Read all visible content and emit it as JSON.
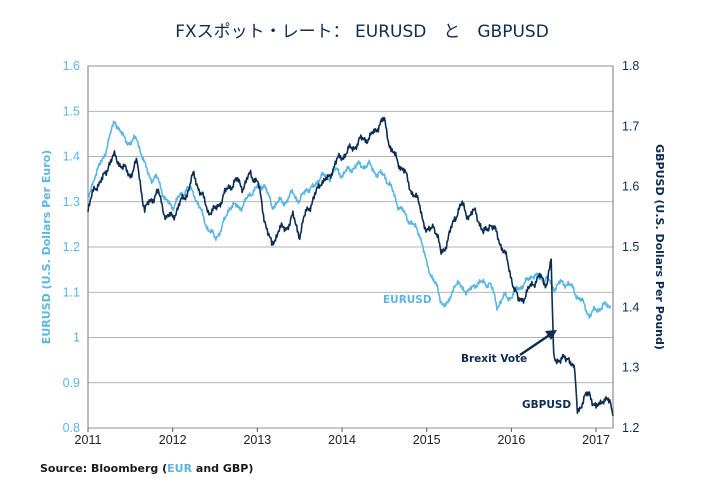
{
  "chart_data": {
    "type": "line",
    "title": "FXスポット・レート：  EURUSD　と　GBPUSD",
    "x_ticks": [
      "2011",
      "2012",
      "2013",
      "2014",
      "2015",
      "2016",
      "2017"
    ],
    "y_left": {
      "label": "EURUSD (U.S. Dollars Per Euro)",
      "ticks": [
        "1.6",
        "1.5",
        "1.4",
        "1.3",
        "1.2",
        "1.1",
        "1",
        "0.9",
        "0.8"
      ],
      "lim": [
        0.8,
        1.6
      ]
    },
    "y_right": {
      "label": "GBPUSD (U.S. Dollars Per Pound)",
      "ticks": [
        "1.8",
        "1.7",
        "1.6",
        "1.5",
        "1.4",
        "1.3",
        "1.2"
      ],
      "lim": [
        1.2,
        1.8
      ]
    },
    "xlim": [
      2011.0,
      2017.2
    ],
    "grid": true,
    "series": [
      {
        "name": "EURUSD",
        "axis": "left",
        "color": "#5bb6e4",
        "points": [
          [
            2011.0,
            1.3
          ],
          [
            2011.08,
            1.36
          ],
          [
            2011.17,
            1.39
          ],
          [
            2011.25,
            1.44
          ],
          [
            2011.32,
            1.48
          ],
          [
            2011.42,
            1.44
          ],
          [
            2011.5,
            1.43
          ],
          [
            2011.58,
            1.44
          ],
          [
            2011.67,
            1.38
          ],
          [
            2011.75,
            1.35
          ],
          [
            2011.83,
            1.35
          ],
          [
            2011.92,
            1.3
          ],
          [
            2012.0,
            1.29
          ],
          [
            2012.08,
            1.31
          ],
          [
            2012.17,
            1.33
          ],
          [
            2012.25,
            1.32
          ],
          [
            2012.33,
            1.28
          ],
          [
            2012.42,
            1.24
          ],
          [
            2012.5,
            1.22
          ],
          [
            2012.58,
            1.24
          ],
          [
            2012.67,
            1.29
          ],
          [
            2012.75,
            1.29
          ],
          [
            2012.83,
            1.29
          ],
          [
            2012.92,
            1.32
          ],
          [
            2013.0,
            1.33
          ],
          [
            2013.08,
            1.34
          ],
          [
            2013.17,
            1.29
          ],
          [
            2013.25,
            1.3
          ],
          [
            2013.33,
            1.3
          ],
          [
            2013.42,
            1.32
          ],
          [
            2013.5,
            1.3
          ],
          [
            2013.58,
            1.33
          ],
          [
            2013.67,
            1.33
          ],
          [
            2013.75,
            1.36
          ],
          [
            2013.83,
            1.35
          ],
          [
            2013.92,
            1.37
          ],
          [
            2014.0,
            1.36
          ],
          [
            2014.08,
            1.37
          ],
          [
            2014.17,
            1.38
          ],
          [
            2014.25,
            1.38
          ],
          [
            2014.33,
            1.38
          ],
          [
            2014.42,
            1.36
          ],
          [
            2014.5,
            1.36
          ],
          [
            2014.58,
            1.33
          ],
          [
            2014.67,
            1.29
          ],
          [
            2014.75,
            1.27
          ],
          [
            2014.83,
            1.25
          ],
          [
            2014.92,
            1.23
          ],
          [
            2015.0,
            1.16
          ],
          [
            2015.08,
            1.13
          ],
          [
            2015.17,
            1.08
          ],
          [
            2015.25,
            1.07
          ],
          [
            2015.33,
            1.12
          ],
          [
            2015.42,
            1.11
          ],
          [
            2015.5,
            1.1
          ],
          [
            2015.58,
            1.12
          ],
          [
            2015.67,
            1.12
          ],
          [
            2015.75,
            1.12
          ],
          [
            2015.83,
            1.07
          ],
          [
            2015.92,
            1.09
          ],
          [
            2016.0,
            1.09
          ],
          [
            2016.08,
            1.11
          ],
          [
            2016.17,
            1.12
          ],
          [
            2016.25,
            1.14
          ],
          [
            2016.33,
            1.13
          ],
          [
            2016.42,
            1.13
          ],
          [
            2016.5,
            1.11
          ],
          [
            2016.58,
            1.12
          ],
          [
            2016.67,
            1.12
          ],
          [
            2016.75,
            1.1
          ],
          [
            2016.83,
            1.08
          ],
          [
            2016.92,
            1.05
          ],
          [
            2017.0,
            1.06
          ],
          [
            2017.08,
            1.07
          ],
          [
            2017.17,
            1.07
          ]
        ]
      },
      {
        "name": "GBPUSD",
        "axis": "right",
        "color": "#0d2d52",
        "points": [
          [
            2011.0,
            1.56
          ],
          [
            2011.08,
            1.6
          ],
          [
            2011.17,
            1.61
          ],
          [
            2011.25,
            1.64
          ],
          [
            2011.32,
            1.65
          ],
          [
            2011.42,
            1.63
          ],
          [
            2011.5,
            1.62
          ],
          [
            2011.58,
            1.64
          ],
          [
            2011.67,
            1.56
          ],
          [
            2011.75,
            1.58
          ],
          [
            2011.83,
            1.59
          ],
          [
            2011.92,
            1.55
          ],
          [
            2012.0,
            1.55
          ],
          [
            2012.08,
            1.57
          ],
          [
            2012.17,
            1.59
          ],
          [
            2012.25,
            1.62
          ],
          [
            2012.33,
            1.59
          ],
          [
            2012.42,
            1.56
          ],
          [
            2012.5,
            1.56
          ],
          [
            2012.58,
            1.58
          ],
          [
            2012.67,
            1.6
          ],
          [
            2012.75,
            1.61
          ],
          [
            2012.83,
            1.6
          ],
          [
            2012.92,
            1.62
          ],
          [
            2013.0,
            1.61
          ],
          [
            2013.08,
            1.55
          ],
          [
            2013.17,
            1.5
          ],
          [
            2013.25,
            1.53
          ],
          [
            2013.33,
            1.53
          ],
          [
            2013.42,
            1.55
          ],
          [
            2013.5,
            1.52
          ],
          [
            2013.58,
            1.56
          ],
          [
            2013.67,
            1.58
          ],
          [
            2013.75,
            1.61
          ],
          [
            2013.83,
            1.61
          ],
          [
            2013.92,
            1.64
          ],
          [
            2014.0,
            1.65
          ],
          [
            2014.08,
            1.66
          ],
          [
            2014.17,
            1.67
          ],
          [
            2014.25,
            1.68
          ],
          [
            2014.33,
            1.68
          ],
          [
            2014.42,
            1.7
          ],
          [
            2014.5,
            1.71
          ],
          [
            2014.58,
            1.66
          ],
          [
            2014.67,
            1.64
          ],
          [
            2014.75,
            1.62
          ],
          [
            2014.83,
            1.59
          ],
          [
            2014.92,
            1.57
          ],
          [
            2015.0,
            1.52
          ],
          [
            2015.08,
            1.54
          ],
          [
            2015.17,
            1.49
          ],
          [
            2015.25,
            1.51
          ],
          [
            2015.33,
            1.55
          ],
          [
            2015.42,
            1.57
          ],
          [
            2015.5,
            1.55
          ],
          [
            2015.58,
            1.56
          ],
          [
            2015.67,
            1.52
          ],
          [
            2015.75,
            1.54
          ],
          [
            2015.83,
            1.52
          ],
          [
            2015.92,
            1.49
          ],
          [
            2016.0,
            1.45
          ],
          [
            2016.08,
            1.41
          ],
          [
            2016.17,
            1.42
          ],
          [
            2016.25,
            1.44
          ],
          [
            2016.33,
            1.45
          ],
          [
            2016.42,
            1.44
          ],
          [
            2016.47,
            1.48
          ],
          [
            2016.49,
            1.36
          ],
          [
            2016.5,
            1.32
          ],
          [
            2016.58,
            1.31
          ],
          [
            2016.67,
            1.32
          ],
          [
            2016.75,
            1.29
          ],
          [
            2016.78,
            1.23
          ],
          [
            2016.83,
            1.24
          ],
          [
            2016.92,
            1.26
          ],
          [
            2017.0,
            1.23
          ],
          [
            2017.08,
            1.25
          ],
          [
            2017.17,
            1.24
          ],
          [
            2017.2,
            1.22
          ]
        ]
      }
    ],
    "annotations": [
      {
        "text": "EURUSD",
        "color": "#5bb6e4"
      },
      {
        "text": "GBPUSD",
        "color": "#0d2d52"
      },
      {
        "text": "Brexit Vote",
        "color": "#0d2d52"
      }
    ]
  },
  "source": {
    "prefix": "Source: Bloomberg (",
    "highlight": "EUR",
    "suffix": " and GBP)"
  }
}
